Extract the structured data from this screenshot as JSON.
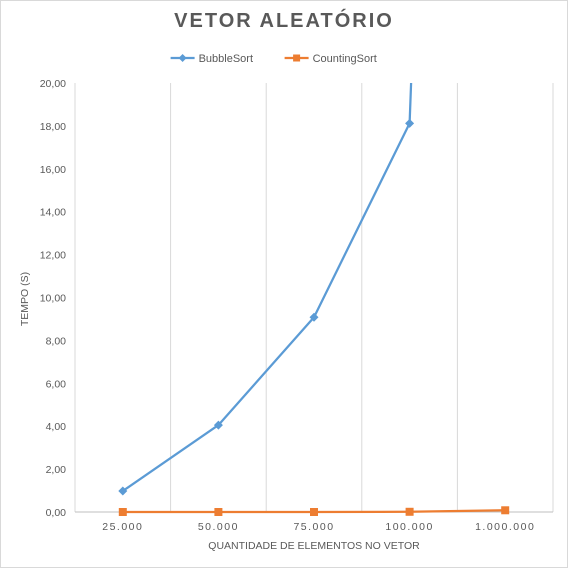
{
  "chart_data": {
    "type": "line",
    "title": "VETOR ALEATÓRIO",
    "xlabel": "QUANTIDADE DE ELEMENTOS NO VETOR",
    "ylabel": "TEMPO (S)",
    "categories": [
      "25.000",
      "50.000",
      "75.000",
      "100.000",
      "1.000.000"
    ],
    "y_tick_labels": [
      "0,00",
      "2,00",
      "4,00",
      "6,00",
      "8,00",
      "10,00",
      "12,00",
      "14,00",
      "16,00",
      "18,00",
      "20,00"
    ],
    "ylim": [
      0,
      20
    ],
    "grid": "vertical",
    "legend_position": "top",
    "series": [
      {
        "name": "BubbleSort",
        "values": [
          0.98,
          4.05,
          9.08,
          18.12,
          null
        ],
        "color": "#5b9bd5",
        "marker": "diamond",
        "continues_above_axis": true
      },
      {
        "name": "CountingSort",
        "values": [
          0.0,
          0.0,
          0.0,
          0.01,
          0.08
        ],
        "color": "#ed7d31",
        "marker": "square"
      }
    ]
  }
}
